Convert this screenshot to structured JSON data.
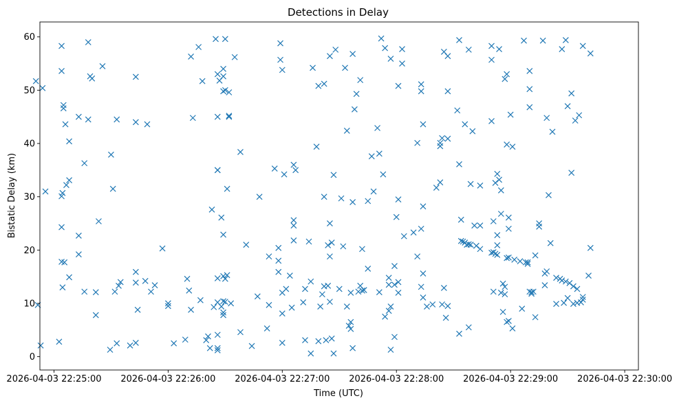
{
  "chart_data": {
    "type": "scatter",
    "title": "Detections in Delay",
    "xlabel": "Time (UTC)",
    "ylabel": "Bistatic Delay (km)",
    "marker": "x",
    "color": "#1f77b4",
    "grid": false,
    "legend": "none",
    "x_unit": "seconds after 2026-04-03 22:25:00",
    "xlim": [
      -7.4,
      307.2
    ],
    "ylim": [
      -2.5,
      62.8
    ],
    "x_ticks": [
      {
        "value": 0,
        "label": "2026-04-03 22:25:00"
      },
      {
        "value": 60,
        "label": "2026-04-03 22:26:00"
      },
      {
        "value": 120,
        "label": "2026-04-03 22:27:00"
      },
      {
        "value": 180,
        "label": "2026-04-03 22:28:00"
      },
      {
        "value": 240,
        "label": "2026-04-03 22:29:00"
      },
      {
        "value": 300,
        "label": "2026-04-03 22:30:00"
      }
    ],
    "y_ticks": [
      {
        "value": 0,
        "label": "0"
      },
      {
        "value": 10,
        "label": "10"
      },
      {
        "value": 20,
        "label": "20"
      },
      {
        "value": 30,
        "label": "30"
      },
      {
        "value": 40,
        "label": "40"
      },
      {
        "value": 50,
        "label": "50"
      },
      {
        "value": 60,
        "label": "60"
      }
    ],
    "points": [
      [
        -9.5,
        51.7
      ],
      [
        -8.5,
        9.7
      ],
      [
        -7,
        2.1
      ],
      [
        -6,
        50.4
      ],
      [
        -4.5,
        31.0
      ],
      [
        2.7,
        2.8
      ],
      [
        4,
        58.3
      ],
      [
        4,
        53.6
      ],
      [
        4,
        24.3
      ],
      [
        4,
        30.1
      ],
      [
        4.5,
        30.7
      ],
      [
        4,
        17.8
      ],
      [
        4.5,
        13.0
      ],
      [
        5,
        46.6
      ],
      [
        5,
        47.2
      ],
      [
        5.5,
        17.7
      ],
      [
        6,
        43.6
      ],
      [
        6.5,
        32.2
      ],
      [
        8,
        33.1
      ],
      [
        8,
        40.4
      ],
      [
        8,
        14.9
      ],
      [
        13,
        45.0
      ],
      [
        13,
        22.7
      ],
      [
        13,
        19.2
      ],
      [
        16,
        12.2
      ],
      [
        16,
        36.3
      ],
      [
        18,
        59.0
      ],
      [
        18,
        44.5
      ],
      [
        19,
        52.6
      ],
      [
        20,
        52.2
      ],
      [
        22,
        12.1
      ],
      [
        22,
        7.8
      ],
      [
        23.5,
        25.4
      ],
      [
        25.5,
        54.5
      ],
      [
        29.5,
        1.3
      ],
      [
        30,
        37.9
      ],
      [
        31,
        31.5
      ],
      [
        32,
        12.2
      ],
      [
        33,
        44.5
      ],
      [
        33,
        2.5
      ],
      [
        34,
        13.3
      ],
      [
        35,
        14.0
      ],
      [
        40,
        2.1
      ],
      [
        43,
        2.6
      ],
      [
        43,
        52.5
      ],
      [
        43,
        44.0
      ],
      [
        43,
        15.9
      ],
      [
        43,
        13.9
      ],
      [
        44,
        8.8
      ],
      [
        48,
        14.2
      ],
      [
        49,
        43.6
      ],
      [
        51,
        12.2
      ],
      [
        53,
        13.4
      ],
      [
        57,
        20.3
      ],
      [
        60,
        9.5
      ],
      [
        60,
        10.0
      ],
      [
        63,
        2.5
      ],
      [
        69,
        3.2
      ],
      [
        70,
        14.6
      ],
      [
        71,
        12.4
      ],
      [
        72,
        56.3
      ],
      [
        72,
        8.8
      ],
      [
        73,
        44.8
      ],
      [
        76,
        58.1
      ],
      [
        77,
        10.6
      ],
      [
        78,
        51.7
      ],
      [
        80,
        3.1
      ],
      [
        81,
        3.8
      ],
      [
        82,
        1.6
      ],
      [
        83,
        27.6
      ],
      [
        84,
        9.3
      ],
      [
        85,
        59.6
      ],
      [
        86,
        1.6
      ],
      [
        86,
        1.2
      ],
      [
        86,
        4.1
      ],
      [
        86,
        35.0
      ],
      [
        86,
        35.0
      ],
      [
        86,
        45.0
      ],
      [
        86,
        53.0
      ],
      [
        86,
        14.7
      ],
      [
        86,
        10.2
      ],
      [
        87,
        51.8
      ],
      [
        88,
        9.4
      ],
      [
        88,
        26.1
      ],
      [
        89,
        52.6
      ],
      [
        89,
        54.0
      ],
      [
        89,
        49.8
      ],
      [
        89,
        15.1
      ],
      [
        89,
        10.4
      ],
      [
        89,
        7.8
      ],
      [
        89,
        8.3
      ],
      [
        89,
        22.9
      ],
      [
        90,
        14.6
      ],
      [
        90,
        50.0
      ],
      [
        90,
        59.6
      ],
      [
        90,
        10.3
      ],
      [
        91,
        31.5
      ],
      [
        91,
        15.3
      ],
      [
        92,
        49.6
      ],
      [
        92,
        45.2
      ],
      [
        92,
        45.0
      ],
      [
        93,
        10.0
      ],
      [
        95,
        56.2
      ],
      [
        98,
        38.4
      ],
      [
        98,
        4.6
      ],
      [
        101,
        21.0
      ],
      [
        104,
        2.0
      ],
      [
        107,
        11.3
      ],
      [
        108,
        30.0
      ],
      [
        112,
        5.3
      ],
      [
        113,
        9.7
      ],
      [
        113,
        18.8
      ],
      [
        116,
        35.3
      ],
      [
        118,
        15.9
      ],
      [
        118,
        20.4
      ],
      [
        118,
        18.0
      ],
      [
        119,
        58.8
      ],
      [
        119,
        55.7
      ],
      [
        120,
        53.8
      ],
      [
        120,
        8.1
      ],
      [
        120,
        2.6
      ],
      [
        120,
        12.0
      ],
      [
        121,
        34.2
      ],
      [
        122,
        12.7
      ],
      [
        124,
        15.2
      ],
      [
        125,
        9.2
      ],
      [
        126,
        36.0
      ],
      [
        126,
        25.6
      ],
      [
        126,
        24.6
      ],
      [
        126,
        21.8
      ],
      [
        127,
        35.0
      ],
      [
        131,
        10.2
      ],
      [
        132,
        12.7
      ],
      [
        132,
        3.1
      ],
      [
        134,
        21.6
      ],
      [
        135,
        0.6
      ],
      [
        135,
        14.1
      ],
      [
        136,
        54.2
      ],
      [
        138,
        39.4
      ],
      [
        139,
        2.9
      ],
      [
        139,
        50.8
      ],
      [
        140,
        9.4
      ],
      [
        141,
        11.7
      ],
      [
        142,
        30.0
      ],
      [
        142,
        13.2
      ],
      [
        142,
        51.2
      ],
      [
        143,
        3.1
      ],
      [
        144,
        13.3
      ],
      [
        144,
        20.9
      ],
      [
        145,
        56.4
      ],
      [
        145,
        25.0
      ],
      [
        145,
        18.8
      ],
      [
        145,
        10.3
      ],
      [
        146,
        3.4
      ],
      [
        146,
        21.4
      ],
      [
        147,
        34.1
      ],
      [
        147,
        0.6
      ],
      [
        148,
        57.6
      ],
      [
        150,
        12.7
      ],
      [
        151,
        29.7
      ],
      [
        152,
        20.7
      ],
      [
        153,
        54.2
      ],
      [
        154,
        42.4
      ],
      [
        154,
        9.4
      ],
      [
        155,
        5.8
      ],
      [
        156,
        5.2
      ],
      [
        156,
        12.0
      ],
      [
        156,
        6.5
      ],
      [
        157,
        56.8
      ],
      [
        157,
        29.0
      ],
      [
        157,
        1.6
      ],
      [
        158,
        46.4
      ],
      [
        159,
        49.3
      ],
      [
        160,
        12.2
      ],
      [
        161,
        13.3
      ],
      [
        161,
        51.9
      ],
      [
        162,
        20.2
      ],
      [
        162,
        12.4
      ],
      [
        163,
        12.5
      ],
      [
        165,
        16.5
      ],
      [
        165,
        29.2
      ],
      [
        167,
        37.6
      ],
      [
        168,
        31.0
      ],
      [
        170,
        42.9
      ],
      [
        171,
        38.1
      ],
      [
        171,
        12.1
      ],
      [
        172,
        59.7
      ],
      [
        173,
        34.2
      ],
      [
        174,
        57.9
      ],
      [
        174,
        7.5
      ],
      [
        176,
        14.8
      ],
      [
        176,
        13.5
      ],
      [
        176,
        8.6
      ],
      [
        177,
        1.3
      ],
      [
        177,
        9.4
      ],
      [
        177,
        55.9
      ],
      [
        179,
        17.0
      ],
      [
        179,
        3.7
      ],
      [
        179,
        13.5
      ],
      [
        180,
        26.2
      ],
      [
        181,
        50.8
      ],
      [
        181,
        29.5
      ],
      [
        181,
        12.0
      ],
      [
        181,
        14.0
      ],
      [
        183,
        57.7
      ],
      [
        183,
        55.0
      ],
      [
        184,
        22.6
      ],
      [
        189,
        23.3
      ],
      [
        191,
        40.1
      ],
      [
        191,
        18.8
      ],
      [
        193,
        51.1
      ],
      [
        193,
        49.8
      ],
      [
        193,
        24.0
      ],
      [
        193,
        13.1
      ],
      [
        194,
        43.6
      ],
      [
        194,
        11.1
      ],
      [
        194,
        28.2
      ],
      [
        194,
        15.6
      ],
      [
        196,
        9.4
      ],
      [
        199,
        9.8
      ],
      [
        201,
        31.7
      ],
      [
        203,
        32.7
      ],
      [
        203,
        39.5
      ],
      [
        203,
        40.1
      ],
      [
        204,
        41.0
      ],
      [
        204,
        9.8
      ],
      [
        205,
        12.9
      ],
      [
        205,
        57.2
      ],
      [
        206,
        7.3
      ],
      [
        207,
        49.8
      ],
      [
        207,
        40.9
      ],
      [
        207,
        9.5
      ],
      [
        207,
        56.4
      ],
      [
        212,
        46.2
      ],
      [
        213,
        59.4
      ],
      [
        213,
        36.1
      ],
      [
        213,
        4.3
      ],
      [
        214,
        25.7
      ],
      [
        214,
        21.7
      ],
      [
        215,
        21.6
      ],
      [
        216,
        43.6
      ],
      [
        216,
        21.4
      ],
      [
        217,
        21.0
      ],
      [
        218,
        21.1
      ],
      [
        218,
        5.5
      ],
      [
        218,
        57.6
      ],
      [
        219,
        21.0
      ],
      [
        219,
        32.4
      ],
      [
        220,
        42.3
      ],
      [
        221,
        24.6
      ],
      [
        222,
        20.8
      ],
      [
        224,
        24.6
      ],
      [
        224,
        32.1
      ],
      [
        224,
        20.2
      ],
      [
        230,
        58.3
      ],
      [
        230,
        44.2
      ],
      [
        230,
        55.7
      ],
      [
        230,
        19.5
      ],
      [
        231,
        19.6
      ],
      [
        231,
        25.4
      ],
      [
        231,
        12.2
      ],
      [
        232,
        32.6
      ],
      [
        232,
        19.3
      ],
      [
        233,
        22.8
      ],
      [
        233,
        20.9
      ],
      [
        233,
        19.1
      ],
      [
        233,
        34.3
      ],
      [
        234,
        57.7
      ],
      [
        234,
        33.2
      ],
      [
        235,
        26.8
      ],
      [
        235,
        31.2
      ],
      [
        235,
        12.0
      ],
      [
        236,
        8.4
      ],
      [
        236,
        13.7
      ],
      [
        237,
        11.7
      ],
      [
        237,
        52.1
      ],
      [
        237,
        13.1
      ],
      [
        238,
        6.5
      ],
      [
        238,
        53.0
      ],
      [
        238,
        39.8
      ],
      [
        238,
        18.5
      ],
      [
        239,
        24.0
      ],
      [
        239,
        26.1
      ],
      [
        239,
        6.7
      ],
      [
        239,
        18.6
      ],
      [
        240,
        45.4
      ],
      [
        241,
        39.4
      ],
      [
        241,
        5.3
      ],
      [
        242,
        18.2
      ],
      [
        245,
        17.9
      ],
      [
        246,
        9.0
      ],
      [
        247,
        59.3
      ],
      [
        248,
        17.7
      ],
      [
        249,
        17.4
      ],
      [
        249,
        17.7
      ],
      [
        250,
        53.6
      ],
      [
        250,
        46.8
      ],
      [
        250,
        50.2
      ],
      [
        250,
        12.2
      ],
      [
        251,
        11.8
      ],
      [
        251,
        12.1
      ],
      [
        252,
        12.2
      ],
      [
        253,
        19.0
      ],
      [
        253,
        7.4
      ],
      [
        255,
        25.0
      ],
      [
        255,
        24.4
      ],
      [
        257,
        59.3
      ],
      [
        258,
        13.4
      ],
      [
        258,
        15.6
      ],
      [
        259,
        16.0
      ],
      [
        259,
        44.8
      ],
      [
        260,
        30.3
      ],
      [
        261,
        21.3
      ],
      [
        262,
        42.2
      ],
      [
        264,
        9.9
      ],
      [
        264,
        14.8
      ],
      [
        266,
        14.6
      ],
      [
        267,
        57.7
      ],
      [
        267,
        14.3
      ],
      [
        268,
        10.1
      ],
      [
        269,
        59.4
      ],
      [
        269,
        14.1
      ],
      [
        270,
        47.0
      ],
      [
        270,
        11.0
      ],
      [
        271,
        13.8
      ],
      [
        272,
        49.4
      ],
      [
        272,
        34.5
      ],
      [
        273,
        13.2
      ],
      [
        273,
        9.9
      ],
      [
        274,
        44.3
      ],
      [
        275,
        10.1
      ],
      [
        275,
        12.7
      ],
      [
        276,
        45.3
      ],
      [
        277,
        10.2
      ],
      [
        278,
        11.2
      ],
      [
        278,
        58.3
      ],
      [
        278,
        10.7
      ],
      [
        281,
        15.2
      ],
      [
        282,
        56.9
      ],
      [
        282,
        20.4
      ]
    ]
  }
}
